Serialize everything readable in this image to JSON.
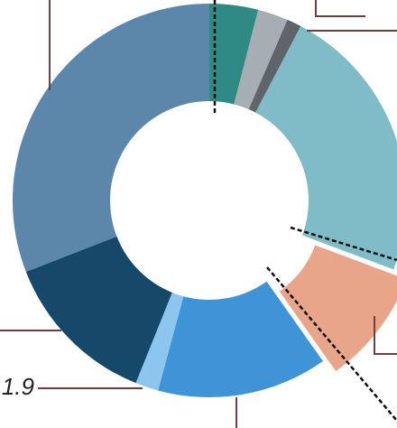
{
  "chart_data": {
    "type": "donut",
    "values": [
      4,
      2.5,
      1.2,
      23,
      9.5,
      14,
      1.9,
      13,
      30.9
    ],
    "value_labels": [
      null,
      null,
      null,
      null,
      null,
      null,
      "1.9",
      null,
      null
    ],
    "colors": [
      "#2f8a86",
      "#a6adb3",
      "#5f6469",
      "#7fbcc8",
      "#e8a58a",
      "#3f94d8",
      "#8cc6ef",
      "#16486a",
      "#5d87aa"
    ],
    "exploded": [
      false,
      false,
      false,
      false,
      true,
      false,
      false,
      false,
      false
    ]
  }
}
